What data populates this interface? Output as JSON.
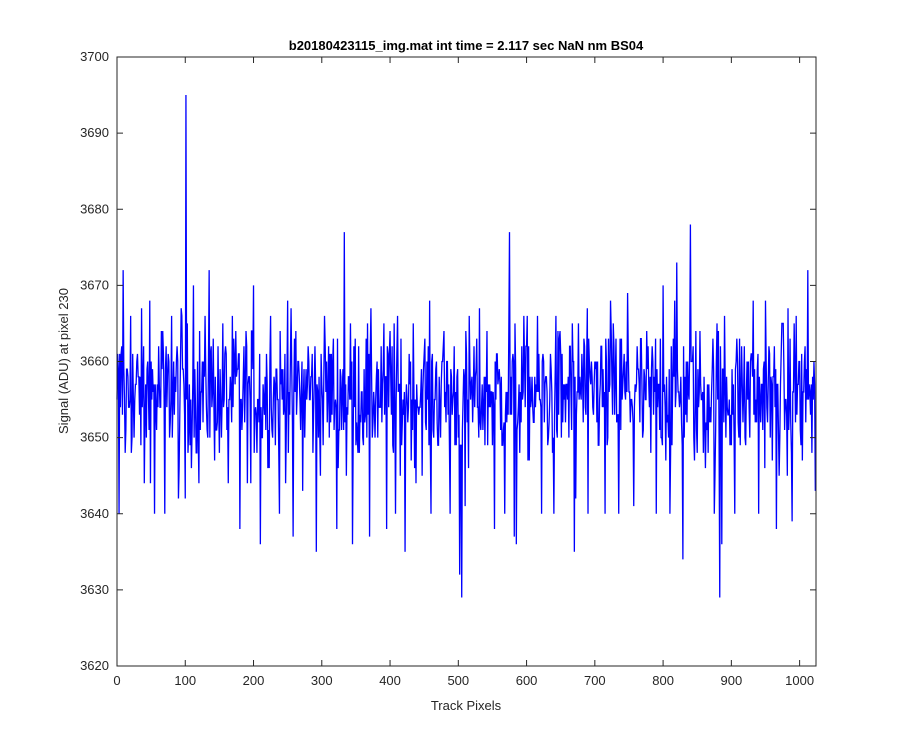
{
  "chart_data": {
    "type": "line",
    "title": "b20180423115_img.mat int time = 2.117 sec  NaN nm BS04",
    "xlabel": "Track Pixels",
    "ylabel": "Signal (ADU) at pixel 230",
    "xlim": [
      0,
      1024
    ],
    "ylim": [
      3620,
      3700
    ],
    "xticks": [
      0,
      100,
      200,
      300,
      400,
      500,
      600,
      700,
      800,
      900,
      1000
    ],
    "yticks": [
      3620,
      3630,
      3640,
      3650,
      3660,
      3670,
      3680,
      3690,
      3700
    ],
    "grid": false,
    "legend": "none",
    "series": [
      {
        "color": "#0000ff",
        "noise_range": [
          3640,
          3672
        ],
        "points": [
          [
            0,
            3655
          ],
          [
            3,
            3640
          ],
          [
            6,
            3661
          ],
          [
            9,
            3672
          ],
          [
            12,
            3648
          ],
          [
            20,
            3666
          ],
          [
            25,
            3650
          ],
          [
            40,
            3644
          ],
          [
            48,
            3668
          ],
          [
            55,
            3640
          ],
          [
            65,
            3664
          ],
          [
            70,
            3640
          ],
          [
            80,
            3666
          ],
          [
            90,
            3642
          ],
          [
            95,
            3666
          ],
          [
            100,
            3642
          ],
          [
            101,
            3695
          ],
          [
            104,
            3648
          ],
          [
            112,
            3670
          ],
          [
            120,
            3644
          ],
          [
            135,
            3672
          ],
          [
            150,
            3648
          ],
          [
            163,
            3644
          ],
          [
            180,
            3638
          ],
          [
            196,
            3644
          ],
          [
            200,
            3670
          ],
          [
            210,
            3636
          ],
          [
            225,
            3666
          ],
          [
            238,
            3640
          ],
          [
            250,
            3668
          ],
          [
            258,
            3637
          ],
          [
            265,
            3660
          ],
          [
            272,
            3643
          ],
          [
            280,
            3662
          ],
          [
            292,
            3635
          ],
          [
            305,
            3662
          ],
          [
            322,
            3638
          ],
          [
            330,
            3656
          ],
          [
            333,
            3677
          ],
          [
            336,
            3645
          ],
          [
            340,
            3658
          ],
          [
            345,
            3636
          ],
          [
            352,
            3650
          ],
          [
            362,
            3659
          ],
          [
            370,
            3637
          ],
          [
            380,
            3658
          ],
          [
            395,
            3638
          ],
          [
            400,
            3664
          ],
          [
            408,
            3640
          ],
          [
            415,
            3645
          ],
          [
            420,
            3653
          ],
          [
            422,
            3635
          ],
          [
            430,
            3660
          ],
          [
            436,
            3646
          ],
          [
            452,
            3652
          ],
          [
            460,
            3640
          ],
          [
            476,
            3660
          ],
          [
            488,
            3640
          ],
          [
            500,
            3650
          ],
          [
            502,
            3632
          ],
          [
            505,
            3629
          ],
          [
            510,
            3641
          ],
          [
            515,
            3646
          ],
          [
            530,
            3650
          ],
          [
            553,
            3638
          ],
          [
            568,
            3640
          ],
          [
            570,
            3656
          ],
          [
            575,
            3677
          ],
          [
            582,
            3637
          ],
          [
            585,
            3636
          ],
          [
            600,
            3662
          ],
          [
            622,
            3640
          ],
          [
            632,
            3650
          ],
          [
            640,
            3640
          ],
          [
            653,
            3652
          ],
          [
            668,
            3660
          ],
          [
            670,
            3635
          ],
          [
            672,
            3642
          ],
          [
            676,
            3665
          ],
          [
            690,
            3640
          ],
          [
            700,
            3660
          ],
          [
            704,
            3660
          ],
          [
            715,
            3640
          ],
          [
            723,
            3668
          ],
          [
            735,
            3640
          ],
          [
            748,
            3669
          ],
          [
            757,
            3641
          ],
          [
            770,
            3650
          ],
          [
            782,
            3648
          ],
          [
            785,
            3660
          ],
          [
            790,
            3640
          ],
          [
            800,
            3670
          ],
          [
            810,
            3640
          ],
          [
            820,
            3673
          ],
          [
            829,
            3634
          ],
          [
            834,
            3660
          ],
          [
            840,
            3678
          ],
          [
            850,
            3648
          ],
          [
            862,
            3646
          ],
          [
            875,
            3640
          ],
          [
            883,
            3629
          ],
          [
            886,
            3636
          ],
          [
            890,
            3666
          ],
          [
            905,
            3640
          ],
          [
            921,
            3649
          ],
          [
            925,
            3660
          ],
          [
            932,
            3668
          ],
          [
            940,
            3640
          ],
          [
            950,
            3668
          ],
          [
            960,
            3647
          ],
          [
            966,
            3638
          ],
          [
            975,
            3665
          ],
          [
            982,
            3645
          ],
          [
            989,
            3639
          ],
          [
            995,
            3666
          ],
          [
            1004,
            3647
          ],
          [
            1012,
            3672
          ],
          [
            1018,
            3648
          ],
          [
            1023,
            3643
          ]
        ]
      }
    ]
  }
}
